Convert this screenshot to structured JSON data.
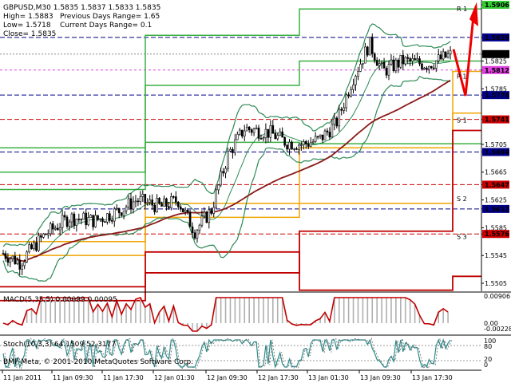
{
  "header": {
    "symbol_line": "GBPUSD,M30  1.5835 1.5837 1.5833 1.5835",
    "high_label": "High= 1.5883",
    "low_label": "Low= 1.5718",
    "close_label": "Close= 1.5835",
    "prev_range_label": "Previous Days Range= 1.65",
    "curr_range_label": "Current Days Range= 0.1"
  },
  "pivots": [
    {
      "label": "R 1",
      "color": "#d4a017"
    },
    {
      "label": "P 1",
      "color": "#d4a017"
    },
    {
      "label": "S 1",
      "color": "#d4a017"
    },
    {
      "label": "S 2",
      "color": "#d4a017"
    },
    {
      "label": "S 3",
      "color": "#d4a017"
    }
  ],
  "price_axis": {
    "labels": [
      "1.5906",
      "1.5859",
      "1.5825",
      "1.5812",
      "1.5785",
      "1.5776",
      "1.5741",
      "1.5705",
      "1.5694",
      "1.5665",
      "1.5647",
      "1.5625",
      "1.5612",
      "1.5585",
      "1.5576",
      "1.5545",
      "1.5505"
    ],
    "highlight": {
      "1.5906": {
        "bg": "#3c3",
        "fg": "#fff"
      },
      "1.5859": {
        "bg": "#00008b",
        "fg": "#fff"
      },
      "1.5835": {
        "bg": "#000",
        "fg": "#fff"
      },
      "1.5812": {
        "bg": "#e040e0",
        "fg": "#fff"
      },
      "1.5776": {
        "bg": "#00008b",
        "fg": "#fff"
      },
      "1.5741": {
        "bg": "#c00",
        "fg": "#fff"
      },
      "1.5694": {
        "bg": "#00008b",
        "fg": "#fff"
      },
      "1.5647": {
        "bg": "#c00",
        "fg": "#fff"
      },
      "1.5612": {
        "bg": "#00008b",
        "fg": "#fff"
      },
      "1.5576": {
        "bg": "#c00",
        "fg": "#fff"
      }
    },
    "current_price": "1.5835"
  },
  "macd": {
    "label": "MACD(5,35,5) 0.00099 0.00095",
    "axis_labels": [
      "0.00906",
      "0.00",
      "-0.00228"
    ]
  },
  "stoch": {
    "label": "Stoch(10,3,3) 64.1509 52.3177",
    "axis_labels": [
      "100",
      "80",
      "20",
      "0"
    ],
    "watermark": "BMF-Meta, © 2001-2010 MetaQuotes Software Corp."
  },
  "time_axis": {
    "labels": [
      "11 Jan 2011",
      "11 Jan 09:30",
      "11 Jan 17:30",
      "12 Jan 01:30",
      "12 Jan 09:30",
      "12 Jan 17:30",
      "13 Jan 01:30",
      "13 Jan 09:30",
      "13 Jan 17:30"
    ]
  },
  "colors": {
    "resistance": "#3cb043",
    "support": "#c00000",
    "pivot": "#f0a500",
    "ma": "#8b1a1a",
    "bands": "#2e8b57",
    "macd_line": "#c00000",
    "macd_hist": "#b0b0b0",
    "stoch_main": "#2e8b8b"
  }
}
